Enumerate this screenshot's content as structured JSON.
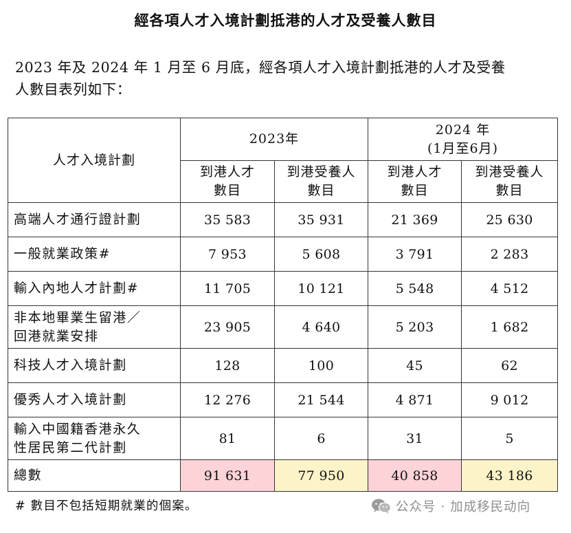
{
  "title": "經各項人才入境計劃抵港的人才及受養人數目",
  "intro": {
    "line1": "2023 年及 2024 年 1 月至 6 月底，經各項人才入境計劃抵港的人才及受養",
    "line2": "人數目表列如下："
  },
  "table": {
    "corner_label": "人才入境計劃",
    "periods": [
      {
        "line1": "2023年",
        "line2": ""
      },
      {
        "line1": "2024 年",
        "line2": "(1月至6月)"
      }
    ],
    "subheaders": [
      {
        "line1": "到港人才",
        "line2": "數目"
      },
      {
        "line1": "到港受養人",
        "line2": "數目"
      },
      {
        "line1": "到港人才",
        "line2": "數目"
      },
      {
        "line1": "到港受養人",
        "line2": "數目"
      }
    ],
    "rows": [
      {
        "name_line1": "高端人才通行證計劃",
        "name_line2": "",
        "values": [
          "35 583",
          "35 931",
          "21 369",
          "25 630"
        ]
      },
      {
        "name_line1": "一般就業政策#",
        "name_line2": "",
        "values": [
          "7 953",
          "5 608",
          "3 791",
          "2 283"
        ]
      },
      {
        "name_line1": "輸入內地人才計劃#",
        "name_line2": "",
        "values": [
          "11 705",
          "10 121",
          "5 548",
          "4 512"
        ]
      },
      {
        "name_line1": "非本地畢業生留港／",
        "name_line2": "回港就業安排",
        "values": [
          "23 905",
          "4 640",
          "5 203",
          "1 682"
        ]
      },
      {
        "name_line1": "科技人才入境計劃",
        "name_line2": "",
        "values": [
          "128",
          "100",
          "45",
          "62"
        ]
      },
      {
        "name_line1": "優秀人才入境計劃",
        "name_line2": "",
        "values": [
          "12 276",
          "21 544",
          "4 871",
          "9 012"
        ]
      },
      {
        "name_line1": "輸入中國籍香港永久",
        "name_line2": "性居民第二代計劃",
        "values": [
          "81",
          "6",
          "31",
          "5"
        ]
      }
    ],
    "total": {
      "label": "總數",
      "values": [
        "91 631",
        "77 950",
        "40 858",
        "43 186"
      ]
    },
    "highlight_colors": [
      "#fcd3d7",
      "#fdf3c9",
      "#fcd3d7",
      "#fdf3c9"
    ]
  },
  "footnote": "#  數目不包括短期就業的個案。",
  "watermark": {
    "icon": "wechat-icon",
    "text": "公众号 · 加成移民动向"
  }
}
